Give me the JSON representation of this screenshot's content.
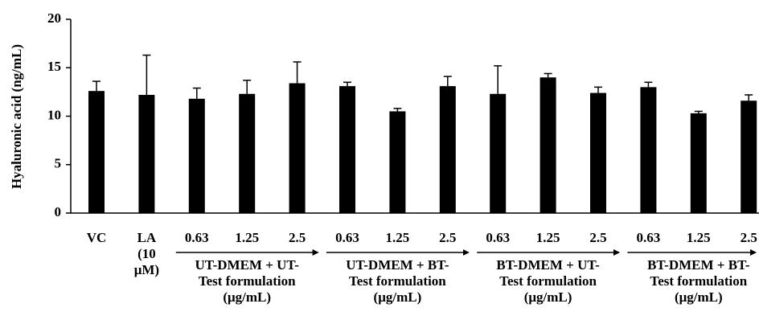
{
  "chart_data": {
    "type": "bar",
    "ylabel": "Hyaluronic acid (ng/mL)",
    "categories": [
      [
        "VC"
      ],
      [
        "LA",
        "(10",
        "μM)"
      ],
      [
        "0.63"
      ],
      [
        "1.25"
      ],
      [
        "2.5"
      ],
      [
        "0.63"
      ],
      [
        "1.25"
      ],
      [
        "2.5"
      ],
      [
        "0.63"
      ],
      [
        "1.25"
      ],
      [
        "2.5"
      ],
      [
        "0.63"
      ],
      [
        "1.25"
      ],
      [
        "2.5"
      ]
    ],
    "values": [
      12.6,
      12.2,
      11.8,
      12.3,
      13.4,
      13.1,
      10.5,
      13.1,
      12.3,
      14.0,
      12.4,
      13.0,
      10.3,
      11.6
    ],
    "errors": [
      1.0,
      4.1,
      1.1,
      1.4,
      2.2,
      0.4,
      0.3,
      1.0,
      2.9,
      0.4,
      0.6,
      0.5,
      0.2,
      0.6
    ],
    "color": "#000000",
    "groups": [
      [
        "UT-DMEM + UT-",
        "Test formulation",
        "(μg/mL)"
      ],
      [
        "UT-DMEM + BT-",
        "Test formulation",
        "(μg/mL)"
      ],
      [
        "BT-DMEM + UT-",
        "Test formulation",
        "(μg/mL)"
      ],
      [
        "BT-DMEM + BT-",
        "Test formulation",
        "(μg/mL)"
      ]
    ],
    "ylim": [
      0,
      20
    ],
    "yticks": [
      0,
      5,
      10,
      15,
      20
    ],
    "grid": false
  }
}
